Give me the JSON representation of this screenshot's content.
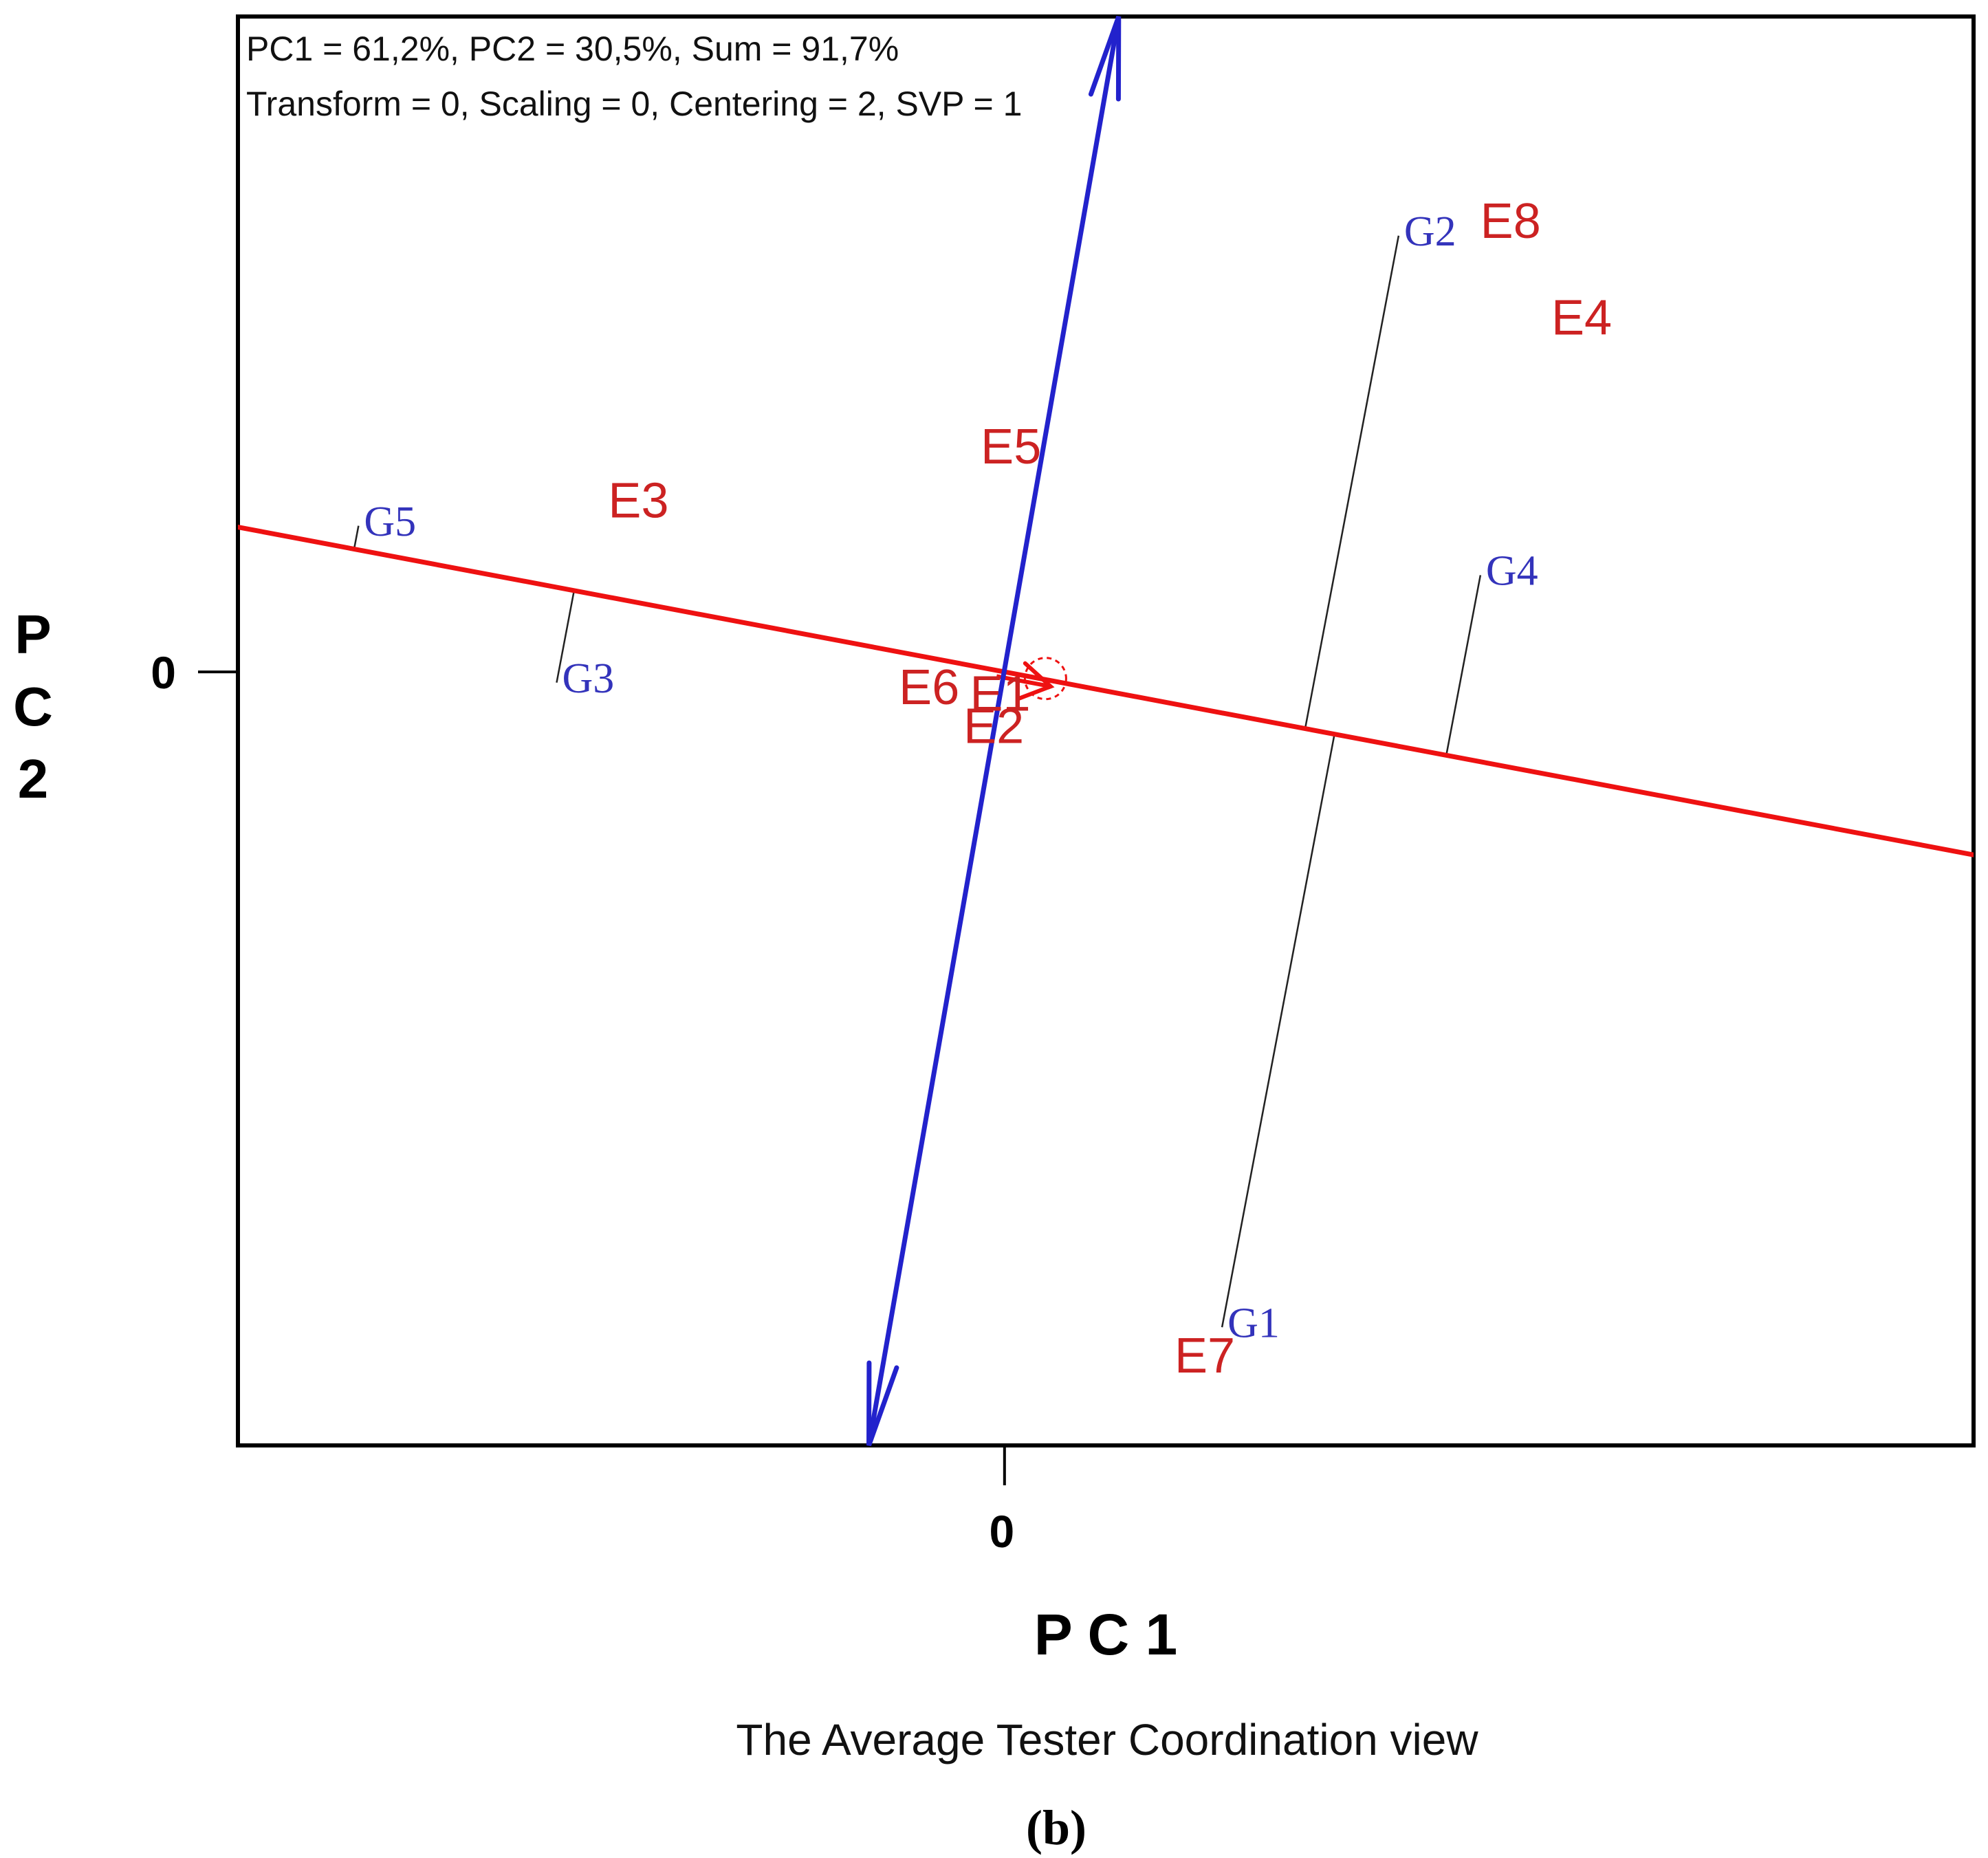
{
  "chart_data": {
    "type": "scatter",
    "view": "average-tester-coordination",
    "info_lines": [
      "PC1 = 61,2%, PC2 = 30,5%, Sum = 91,7%",
      "Transform = 0, Scaling = 0, Centering = 2, SVP = 1"
    ],
    "xlabel": "P C 1",
    "ylabel": "P C 2",
    "xticks": [
      {
        "value": 0,
        "label": "0"
      }
    ],
    "yticks": [
      {
        "value": 0,
        "label": "0"
      }
    ],
    "xlim": [
      -3.56,
      4.5
    ],
    "ylim": [
      -3.6,
      3.05
    ],
    "subtitle": "The Average Tester Coordination view",
    "panel_label": "(b)",
    "ate_axis": {
      "direction": [
        0.983,
        -0.186
      ],
      "average_environment": [
        0.12,
        -0.05
      ],
      "color": "#ee1111"
    },
    "ate_ordinate": {
      "end_top": [
        0.53,
        3.05
      ],
      "end_bottom": [
        -0.63,
        -3.6
      ],
      "color": "#2222cc"
    },
    "genotypes": {
      "color": "#3333bb",
      "points": [
        {
          "label": "G1",
          "x": 1.01,
          "y": -3.05
        },
        {
          "label": "G2",
          "x": 1.83,
          "y": 2.03
        },
        {
          "label": "G3",
          "x": -2.08,
          "y": -0.05
        },
        {
          "label": "G4",
          "x": 2.21,
          "y": 0.45
        },
        {
          "label": "G5",
          "x": -3.0,
          "y": 0.68
        }
      ]
    },
    "environments": {
      "color": "#cc2222",
      "points": [
        {
          "label": "E1",
          "x": -0.02,
          "y": -0.12
        },
        {
          "label": "E2",
          "x": -0.05,
          "y": -0.27
        },
        {
          "label": "E3",
          "x": -1.7,
          "y": 0.78
        },
        {
          "label": "E4",
          "x": 2.68,
          "y": 1.63
        },
        {
          "label": "E5",
          "x": 0.03,
          "y": 1.03
        },
        {
          "label": "E6",
          "x": -0.35,
          "y": -0.09
        },
        {
          "label": "E7",
          "x": 0.93,
          "y": -3.2
        },
        {
          "label": "E8",
          "x": 2.35,
          "y": 2.08
        }
      ]
    }
  }
}
